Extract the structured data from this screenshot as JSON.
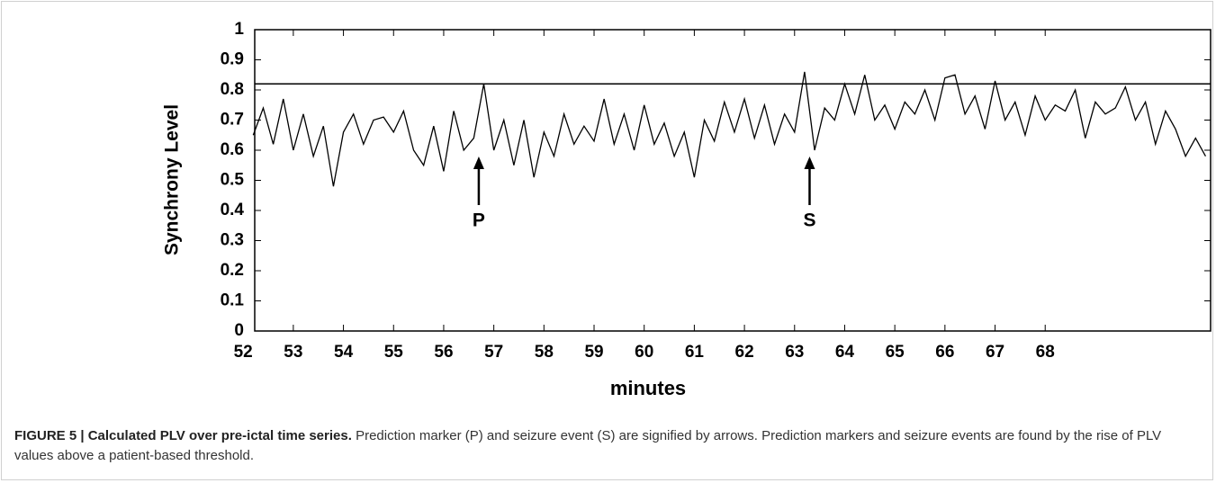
{
  "chart_data": {
    "type": "line",
    "ylabel": "Synchrony Level",
    "xlabel": "minutes",
    "x": [
      52.2,
      52.4,
      52.6,
      52.8,
      53.0,
      53.2,
      53.4,
      53.6,
      53.8,
      54.0,
      54.2,
      54.4,
      54.6,
      54.8,
      55.0,
      55.2,
      55.4,
      55.6,
      55.8,
      56.0,
      56.2,
      56.4,
      56.6,
      56.8,
      57.0,
      57.2,
      57.4,
      57.6,
      57.8,
      58.0,
      58.2,
      58.4,
      58.6,
      58.8,
      59.0,
      59.2,
      59.4,
      59.6,
      59.8,
      60.0,
      60.2,
      60.4,
      60.6,
      60.8,
      61.0,
      61.2,
      61.4,
      61.6,
      61.8,
      62.0,
      62.2,
      62.4,
      62.6,
      62.8,
      63.0,
      63.2,
      63.4,
      63.6,
      63.8,
      64.0,
      64.2,
      64.4,
      64.6,
      64.8,
      65.0,
      65.2,
      65.4,
      65.6,
      65.8,
      66.0,
      66.2,
      66.4,
      66.6,
      66.8,
      67.0,
      67.2,
      67.4,
      67.6,
      67.8,
      68.0,
      68.2,
      68.4,
      68.6,
      68.8,
      69.0,
      69.2,
      69.4,
      69.6,
      69.8,
      70.0,
      70.2,
      70.4,
      70.6,
      70.8,
      71.0,
      71.2
    ],
    "series": [
      {
        "color": "#000000",
        "values": [
          0.65,
          0.74,
          0.62,
          0.77,
          0.6,
          0.72,
          0.58,
          0.68,
          0.48,
          0.66,
          0.72,
          0.62,
          0.7,
          0.71,
          0.66,
          0.73,
          0.6,
          0.55,
          0.68,
          0.53,
          0.73,
          0.6,
          0.64,
          0.82,
          0.6,
          0.7,
          0.55,
          0.7,
          0.51,
          0.66,
          0.58,
          0.72,
          0.62,
          0.68,
          0.63,
          0.77,
          0.62,
          0.72,
          0.6,
          0.75,
          0.62,
          0.69,
          0.58,
          0.66,
          0.51,
          0.7,
          0.63,
          0.76,
          0.66,
          0.77,
          0.64,
          0.75,
          0.62,
          0.72,
          0.66,
          0.86,
          0.6,
          0.74,
          0.7,
          0.82,
          0.72,
          0.85,
          0.7,
          0.75,
          0.67,
          0.76,
          0.72,
          0.8,
          0.7,
          0.84,
          0.85,
          0.72,
          0.78,
          0.67,
          0.83,
          0.7,
          0.76,
          0.65,
          0.78,
          0.7,
          0.75,
          0.73,
          0.8,
          0.64,
          0.76,
          0.72,
          0.74,
          0.81,
          0.7,
          0.76,
          0.62,
          0.73,
          0.67,
          0.58,
          0.64,
          0.58
        ]
      }
    ],
    "threshold": 0.82,
    "annotations": [
      {
        "text": "P",
        "x": 56.7
      },
      {
        "text": "S",
        "x": 63.3
      }
    ],
    "xlim": [
      52.23,
      71.3
    ],
    "ylim": [
      0,
      1
    ],
    "xticks": [
      52,
      53,
      54,
      55,
      56,
      57,
      58,
      59,
      60,
      61,
      62,
      63,
      64,
      65,
      66,
      67,
      68
    ],
    "yticks": [
      0,
      0.1,
      0.2,
      0.3,
      0.4,
      0.5,
      0.6,
      0.7,
      0.8,
      0.9,
      1
    ]
  },
  "caption": {
    "label": "FIGURE 5 | Calculated PLV over pre-ictal time series.",
    "text": "Prediction marker (P) and seizure event (S) are signified by arrows. Prediction markers and seizure events are found by the rise of PLV values above a patient-based threshold."
  }
}
